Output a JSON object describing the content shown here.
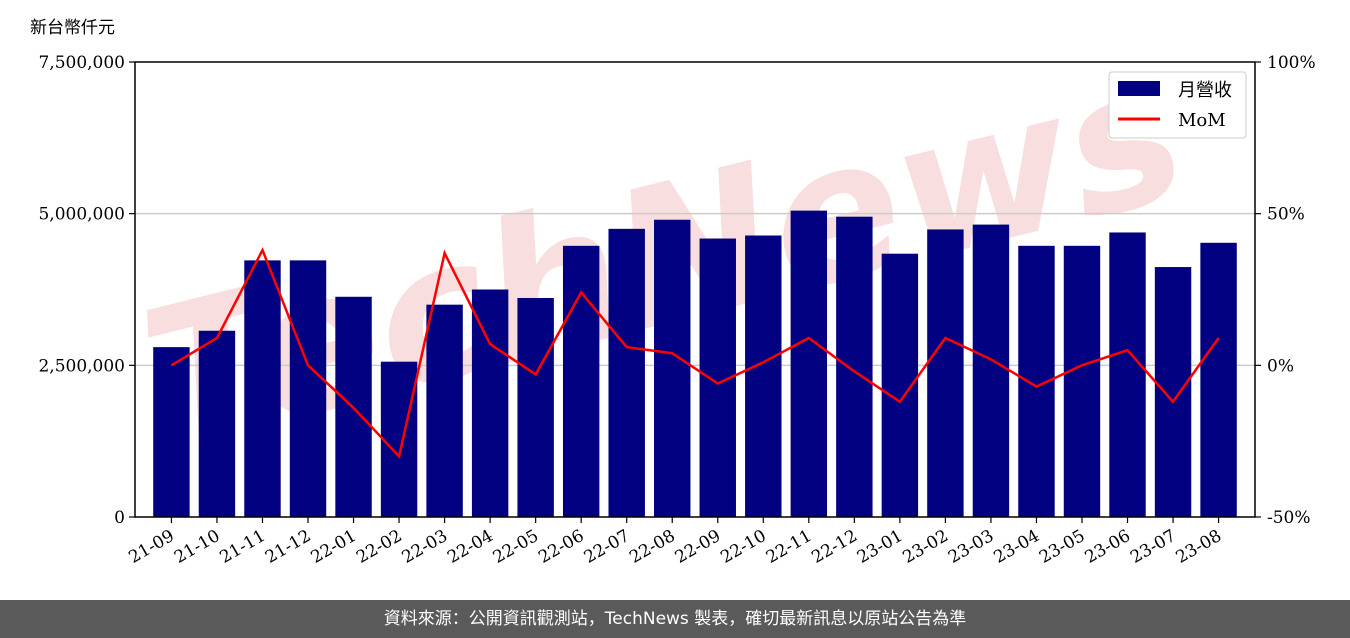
{
  "y_unit_label": "新台幣仟元",
  "footer_text": "資料來源：公開資訊觀測站，TechNews 製表，確切最新訊息以原站公告為準",
  "watermark_text": "TechNews",
  "colors": {
    "bar": "#000080",
    "line": "#ff0000",
    "grid": "#cccccc",
    "footer_bg": "#5a5a5a",
    "watermark": "#f0b8b8"
  },
  "chart_data": {
    "type": "bar",
    "categories": [
      "21-09",
      "21-10",
      "21-11",
      "21-12",
      "22-01",
      "22-02",
      "22-03",
      "22-04",
      "22-05",
      "22-06",
      "22-07",
      "22-08",
      "22-09",
      "22-10",
      "22-11",
      "22-12",
      "23-01",
      "23-02",
      "23-03",
      "23-04",
      "23-05",
      "23-06",
      "23-07",
      "23-08"
    ],
    "series": [
      {
        "name": "月營收",
        "type": "bar",
        "axis": "left",
        "values": [
          2800000,
          3070000,
          4230000,
          4230000,
          3630000,
          2560000,
          3500000,
          3750000,
          3610000,
          4470000,
          4750000,
          4900000,
          4590000,
          4640000,
          5050000,
          4950000,
          4340000,
          4740000,
          4820000,
          4470000,
          4470000,
          4690000,
          4120000,
          4520000
        ]
      },
      {
        "name": "MoM",
        "type": "line",
        "axis": "right",
        "values": [
          0,
          9,
          38,
          0,
          -14,
          -30,
          37,
          7,
          -3,
          24,
          6,
          4,
          -6,
          1,
          9,
          -2,
          -12,
          9,
          2,
          -7,
          0,
          5,
          -12,
          9
        ]
      }
    ],
    "y_left": {
      "min": 0,
      "max": 7500000,
      "ticks": [
        0,
        2500000,
        5000000,
        7500000
      ],
      "tick_labels": [
        "0",
        "2,500,000",
        "5,000,000",
        "7,500,000"
      ]
    },
    "y_right": {
      "min": -50,
      "max": 100,
      "ticks": [
        -50,
        0,
        50,
        100
      ],
      "tick_labels": [
        "-50%",
        "0%",
        "50%",
        "100%"
      ]
    },
    "grid": "horizontal",
    "legend": "top-right"
  }
}
